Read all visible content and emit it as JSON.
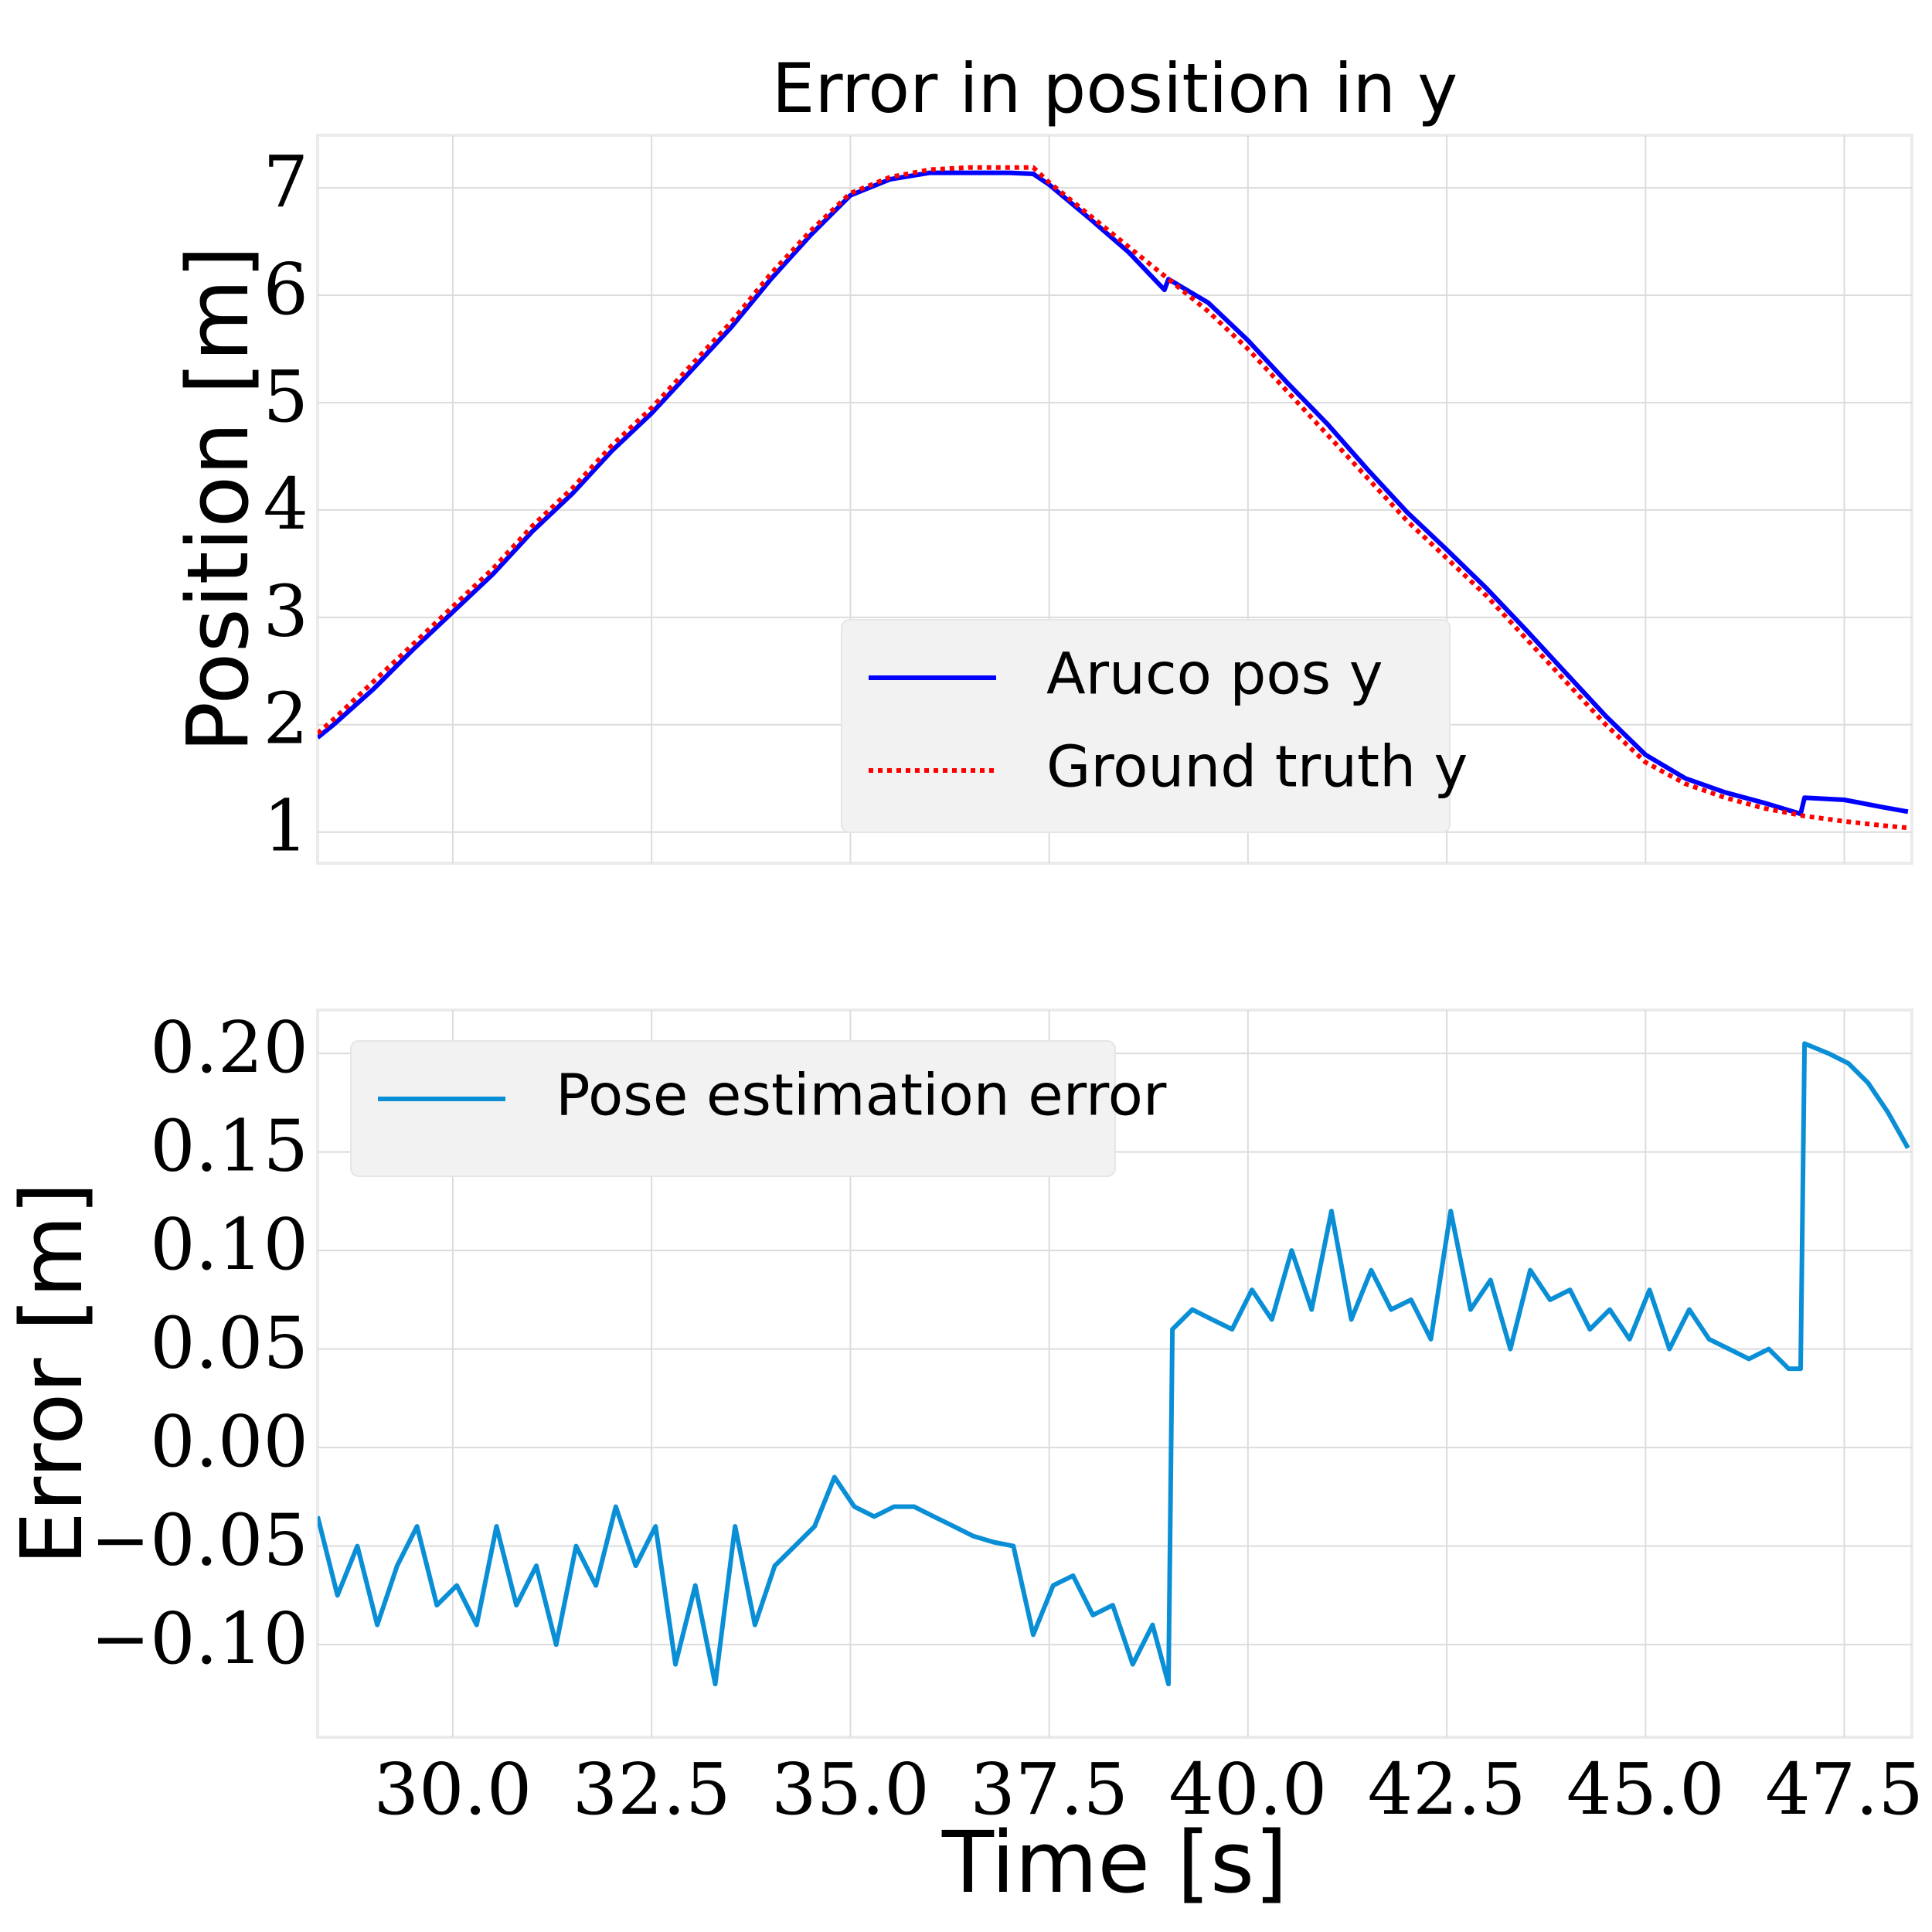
{
  "chart_data": [
    {
      "type": "line",
      "title": "Error in position in y",
      "ylabel": "Position [m]",
      "ylim": [
        0.71,
        7.49
      ],
      "yticks": [
        1,
        2,
        3,
        4,
        5,
        6,
        7
      ],
      "xlim": [
        28.3,
        48.35
      ],
      "grid": true,
      "legend": "lower center",
      "series": [
        {
          "name": "Aruco pos y",
          "color": "#0000ff",
          "style": "solid",
          "x": [
            28.3,
            28.5,
            29,
            29.5,
            30,
            30.5,
            31,
            31.5,
            32,
            32.5,
            33,
            33.5,
            34,
            34.5,
            35,
            35.5,
            36,
            36.5,
            37,
            37.3,
            37.5,
            38,
            38.5,
            38.95,
            39,
            39.5,
            40,
            40.5,
            41,
            41.5,
            42,
            42.5,
            43,
            43.5,
            44,
            44.5,
            45,
            45.5,
            46,
            46.5,
            46.95,
            47,
            47.5,
            48,
            48.3
          ],
          "values": [
            1.88,
            2.0,
            2.33,
            2.7,
            3.05,
            3.4,
            3.8,
            4.15,
            4.55,
            4.9,
            5.3,
            5.7,
            6.15,
            6.56,
            6.93,
            7.08,
            7.14,
            7.14,
            7.14,
            7.13,
            7.03,
            6.72,
            6.4,
            6.05,
            6.15,
            5.93,
            5.58,
            5.18,
            4.8,
            4.38,
            3.98,
            3.63,
            3.27,
            2.88,
            2.48,
            2.08,
            1.72,
            1.5,
            1.37,
            1.27,
            1.17,
            1.32,
            1.3,
            1.23,
            1.19
          ]
        },
        {
          "name": "Ground truth y",
          "color": "#ff0000",
          "style": "dotted",
          "x": [
            28.3,
            28.5,
            29,
            29.5,
            30,
            30.5,
            31,
            31.5,
            32,
            32.5,
            33,
            33.5,
            34,
            34.5,
            35,
            35.5,
            36,
            36.5,
            37,
            37.3,
            37.5,
            38,
            38.5,
            39,
            39.5,
            40,
            40.5,
            41,
            41.5,
            42,
            42.5,
            43,
            43.5,
            44,
            44.5,
            45,
            45.5,
            46,
            46.5,
            47,
            47.5,
            48,
            48.3
          ],
          "values": [
            1.92,
            2.05,
            2.4,
            2.75,
            3.1,
            3.45,
            3.85,
            4.2,
            4.6,
            4.95,
            5.35,
            5.75,
            6.2,
            6.6,
            6.95,
            7.1,
            7.17,
            7.19,
            7.19,
            7.19,
            7.05,
            6.75,
            6.45,
            6.15,
            5.85,
            5.5,
            5.1,
            4.7,
            4.3,
            3.9,
            3.55,
            3.2,
            2.8,
            2.4,
            2.0,
            1.65,
            1.45,
            1.32,
            1.22,
            1.15,
            1.1,
            1.06,
            1.04
          ]
        }
      ]
    },
    {
      "type": "line",
      "xlabel": "Time [s]",
      "ylabel": "Error [m]",
      "ylim": [
        -0.147,
        0.222
      ],
      "yticks": [
        {
          "value": -0.1,
          "label": "−0.10"
        },
        {
          "value": -0.05,
          "label": "−0.05"
        },
        {
          "value": 0,
          "label": "0.00"
        },
        {
          "value": 0.05,
          "label": "0.05"
        },
        {
          "value": 0.1,
          "label": "0.10"
        },
        {
          "value": 0.15,
          "label": "0.15"
        },
        {
          "value": 0.2,
          "label": "0.20"
        }
      ],
      "xlim": [
        28.3,
        48.35
      ],
      "xticks": [
        {
          "value": 30,
          "label": "30.0"
        },
        {
          "value": 32.5,
          "label": "32.5"
        },
        {
          "value": 35,
          "label": "35.0"
        },
        {
          "value": 37.5,
          "label": "37.5"
        },
        {
          "value": 40,
          "label": "40.0"
        },
        {
          "value": 42.5,
          "label": "42.5"
        },
        {
          "value": 45,
          "label": "45.0"
        },
        {
          "value": 47.5,
          "label": "47.5"
        }
      ],
      "grid": true,
      "legend": "upper left",
      "series": [
        {
          "name": "Pose estimation error",
          "color": "#0a8fd6",
          "style": "solid",
          "x": [
            28.3,
            28.55,
            28.8,
            29.05,
            29.3,
            29.55,
            29.8,
            30.05,
            30.3,
            30.55,
            30.8,
            31.05,
            31.3,
            31.55,
            31.8,
            32.05,
            32.3,
            32.55,
            32.8,
            33.05,
            33.3,
            33.55,
            33.8,
            34.05,
            34.3,
            34.55,
            34.8,
            35.05,
            35.3,
            35.55,
            35.8,
            36.05,
            36.3,
            36.55,
            36.8,
            37.05,
            37.3,
            37.55,
            37.8,
            38.05,
            38.3,
            38.55,
            38.8,
            39.0,
            39.05,
            39.3,
            39.55,
            39.8,
            40.05,
            40.3,
            40.55,
            40.8,
            41.05,
            41.3,
            41.55,
            41.8,
            42.05,
            42.3,
            42.55,
            42.8,
            43.05,
            43.3,
            43.55,
            43.8,
            44.05,
            44.3,
            44.55,
            44.8,
            45.05,
            45.3,
            45.55,
            45.8,
            46.05,
            46.3,
            46.55,
            46.8,
            46.95,
            47.0,
            47.3,
            47.55,
            47.8,
            48.05,
            48.3
          ],
          "values": [
            -0.035,
            -0.075,
            -0.05,
            -0.09,
            -0.06,
            -0.04,
            -0.08,
            -0.07,
            -0.09,
            -0.04,
            -0.08,
            -0.06,
            -0.1,
            -0.05,
            -0.07,
            -0.03,
            -0.06,
            -0.04,
            -0.11,
            -0.07,
            -0.12,
            -0.04,
            -0.09,
            -0.06,
            -0.05,
            -0.04,
            -0.015,
            -0.03,
            -0.035,
            -0.03,
            -0.03,
            -0.035,
            -0.04,
            -0.045,
            -0.048,
            -0.05,
            -0.095,
            -0.07,
            -0.065,
            -0.085,
            -0.08,
            -0.11,
            -0.09,
            -0.12,
            0.06,
            0.07,
            0.065,
            0.06,
            0.08,
            0.065,
            0.1,
            0.07,
            0.12,
            0.065,
            0.09,
            0.07,
            0.075,
            0.055,
            0.12,
            0.07,
            0.085,
            0.05,
            0.09,
            0.075,
            0.08,
            0.06,
            0.07,
            0.055,
            0.08,
            0.05,
            0.07,
            0.055,
            0.05,
            0.045,
            0.05,
            0.04,
            0.04,
            0.205,
            0.2,
            0.195,
            0.185,
            0.17,
            0.152
          ]
        }
      ]
    }
  ]
}
